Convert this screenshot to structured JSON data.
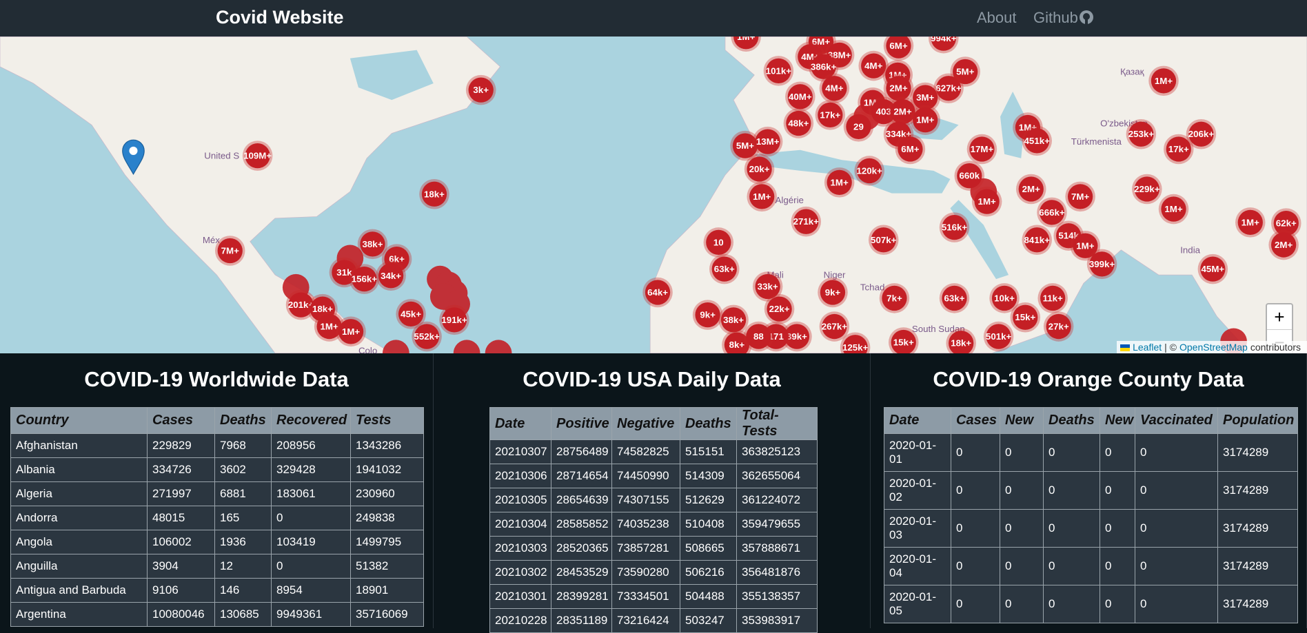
{
  "navbar": {
    "brand": "Covid Website",
    "links": [
      "About",
      "Github"
    ]
  },
  "map": {
    "clusters": [
      "1M+",
      "6M+",
      "38M+",
      "6M+",
      "994k+",
      "4M+",
      "3k+",
      "101k+",
      "386k+",
      "4M+",
      "1M+",
      "5M+",
      "1M+",
      "40M+",
      "4M+",
      "2M+",
      "627k+",
      "3M+",
      "1M+",
      "17k+",
      "403",
      "2M+",
      "48k+",
      "29",
      "1M+",
      "334k+",
      "1M+",
      "253k+",
      "206k+",
      "109M+",
      "5M+",
      "13M+",
      "451k+",
      "6M+",
      "17M+",
      "17k+",
      "20k+",
      "120k+",
      "660k",
      "1M+",
      "2M+",
      "229k+",
      "18k+",
      "1M+",
      "1M+",
      "7M+",
      "1M+",
      "666k+",
      "271k+",
      "516k+",
      "1M+",
      "62k+",
      "2M+",
      "7M+",
      "841k+",
      "514k",
      "1M+",
      "507k+",
      "10",
      "63k+",
      "399k+",
      "45M+",
      "38k+",
      "6k+",
      "34k+",
      "31k",
      "156k+",
      "33k+",
      "9k+",
      "7k+",
      "63k+",
      "10k+",
      "11k+",
      "64k+",
      "22k+",
      "9k+",
      "38k+",
      "201k+",
      "18k+",
      "15k+",
      "27k+",
      "45k+",
      "191k+",
      "1M+",
      "1M+",
      "267k+",
      "501k+",
      "39k+",
      "171",
      "552k+",
      "8k+",
      "15k+",
      "18k+",
      "125k+",
      "88"
    ],
    "place_labels": [
      "United S",
      "Méx",
      "India",
      "Mali",
      "Niger",
      "Tchad",
      "South Sudan",
      "Türkmenista",
      "O'zbekiston",
      "Қазақ",
      "Algérie",
      "Colo"
    ],
    "zoom_in": "+",
    "zoom_out": "−",
    "attribution": {
      "leaflet": "Leaflet",
      "separator": "| ©",
      "osm": "OpenStreetMap",
      "contributors": "contributors"
    }
  },
  "panels": [
    {
      "title": "COVID-19 Worldwide Data",
      "columns": [
        "Country",
        "Cases",
        "Deaths",
        "Recovered",
        "Tests"
      ],
      "rows": [
        [
          "Afghanistan",
          229829,
          7968,
          208956,
          1343286
        ],
        [
          "Albania",
          334726,
          3602,
          329428,
          1941032
        ],
        [
          "Algeria",
          271997,
          6881,
          183061,
          230960
        ],
        [
          "Andorra",
          48015,
          165,
          0,
          249838
        ],
        [
          "Angola",
          106002,
          1936,
          103419,
          1499795
        ],
        [
          "Anguilla",
          3904,
          12,
          0,
          51382
        ],
        [
          "Antigua and Barbuda",
          9106,
          146,
          8954,
          18901
        ],
        [
          "Argentina",
          10080046,
          130685,
          9949361,
          35716069
        ]
      ]
    },
    {
      "title": "COVID-19 USA Daily Data",
      "columns": [
        "Date",
        "Positive",
        "Negative",
        "Deaths",
        "Total-Tests"
      ],
      "rows": [
        [
          20210307,
          28756489,
          74582825,
          515151,
          363825123
        ],
        [
          20210306,
          28714654,
          74450990,
          514309,
          362655064
        ],
        [
          20210305,
          28654639,
          74307155,
          512629,
          361224072
        ],
        [
          20210304,
          28585852,
          74035238,
          510408,
          359479655
        ],
        [
          20210303,
          28520365,
          73857281,
          508665,
          357888671
        ],
        [
          20210302,
          28453529,
          73590280,
          506216,
          356481876
        ],
        [
          20210301,
          28399281,
          73334501,
          504488,
          355138357
        ],
        [
          20210228,
          28351189,
          73216424,
          503247,
          353983917
        ]
      ]
    },
    {
      "title": "COVID-19 Orange County Data",
      "columns": [
        "Date",
        "Cases",
        "New",
        "Deaths",
        "New",
        "Vaccinated",
        "Population"
      ],
      "rows": [
        [
          "2020-01-01",
          0,
          0,
          0,
          0,
          0,
          3174289
        ],
        [
          "2020-01-02",
          0,
          0,
          0,
          0,
          0,
          3174289
        ],
        [
          "2020-01-03",
          0,
          0,
          0,
          0,
          0,
          3174289
        ],
        [
          "2020-01-04",
          0,
          0,
          0,
          0,
          0,
          3174289
        ],
        [
          "2020-01-05",
          0,
          0,
          0,
          0,
          0,
          3174289
        ]
      ]
    }
  ]
}
